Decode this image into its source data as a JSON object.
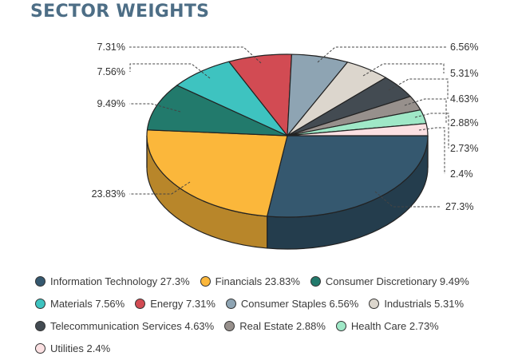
{
  "title": "SECTOR WEIGHTS",
  "chart_data": {
    "type": "pie",
    "style": "3d",
    "title": "SECTOR WEIGHTS",
    "legend_position": "bottom",
    "unit": "%",
    "slices": [
      {
        "label": "Information Technology",
        "value": 27.3,
        "display": "27.3%",
        "color": "#35586f",
        "side": "#243d4d"
      },
      {
        "label": "Financials",
        "value": 23.83,
        "display": "23.83%",
        "color": "#fbb73b",
        "side": "#b8862a"
      },
      {
        "label": "Consumer Discretionary",
        "value": 9.49,
        "display": "9.49%",
        "color": "#227a6c",
        "side": "#17564c"
      },
      {
        "label": "Materials",
        "value": 7.56,
        "display": "7.56%",
        "color": "#3ec3c0",
        "side": "#2b8a88"
      },
      {
        "label": "Energy",
        "value": 7.31,
        "display": "7.31%",
        "color": "#d24b53",
        "side": "#94343a"
      },
      {
        "label": "Consumer Staples",
        "value": 6.56,
        "display": "6.56%",
        "color": "#8ea4b3",
        "side": "#64737e"
      },
      {
        "label": "Industrials",
        "value": 5.31,
        "display": "5.31%",
        "color": "#dcd6cd",
        "side": "#9b9690"
      },
      {
        "label": "Telecommunication Services",
        "value": 4.63,
        "display": "4.63%",
        "color": "#434b52",
        "side": "#2e3439"
      },
      {
        "label": "Real Estate",
        "value": 2.88,
        "display": "2.88%",
        "color": "#97908c",
        "side": "#6a6562"
      },
      {
        "label": "Health Care",
        "value": 2.73,
        "display": "2.73%",
        "color": "#9fe8c7",
        "side": "#70a38c"
      },
      {
        "label": "Utilities",
        "value": 2.4,
        "display": "2.4%",
        "color": "#fbe0e2",
        "side": "#b09d9f"
      }
    ]
  },
  "legend": {
    "rows": [
      [
        {
          "text": "Information Technology 27.3%",
          "color": "#35586f"
        },
        {
          "text": "Financials 23.83%",
          "color": "#fbb73b"
        },
        {
          "text": "Consumer Discretionary 9.49%",
          "color": "#227a6c"
        }
      ],
      [
        {
          "text": "Materials 7.56%",
          "color": "#3ec3c0"
        },
        {
          "text": "Energy 7.31%",
          "color": "#d24b53"
        },
        {
          "text": "Consumer Staples 6.56%",
          "color": "#8ea4b3"
        },
        {
          "text": "Industrials 5.31%",
          "color": "#dcd6cd"
        }
      ],
      [
        {
          "text": "Telecommunication Services 4.63%",
          "color": "#434b52"
        },
        {
          "text": "Real Estate 2.88%",
          "color": "#97908c"
        },
        {
          "text": "Health Care 2.73%",
          "color": "#9fe8c7"
        }
      ],
      [
        {
          "text": "Utilities 2.4%",
          "color": "#fbe0e2"
        }
      ]
    ]
  }
}
